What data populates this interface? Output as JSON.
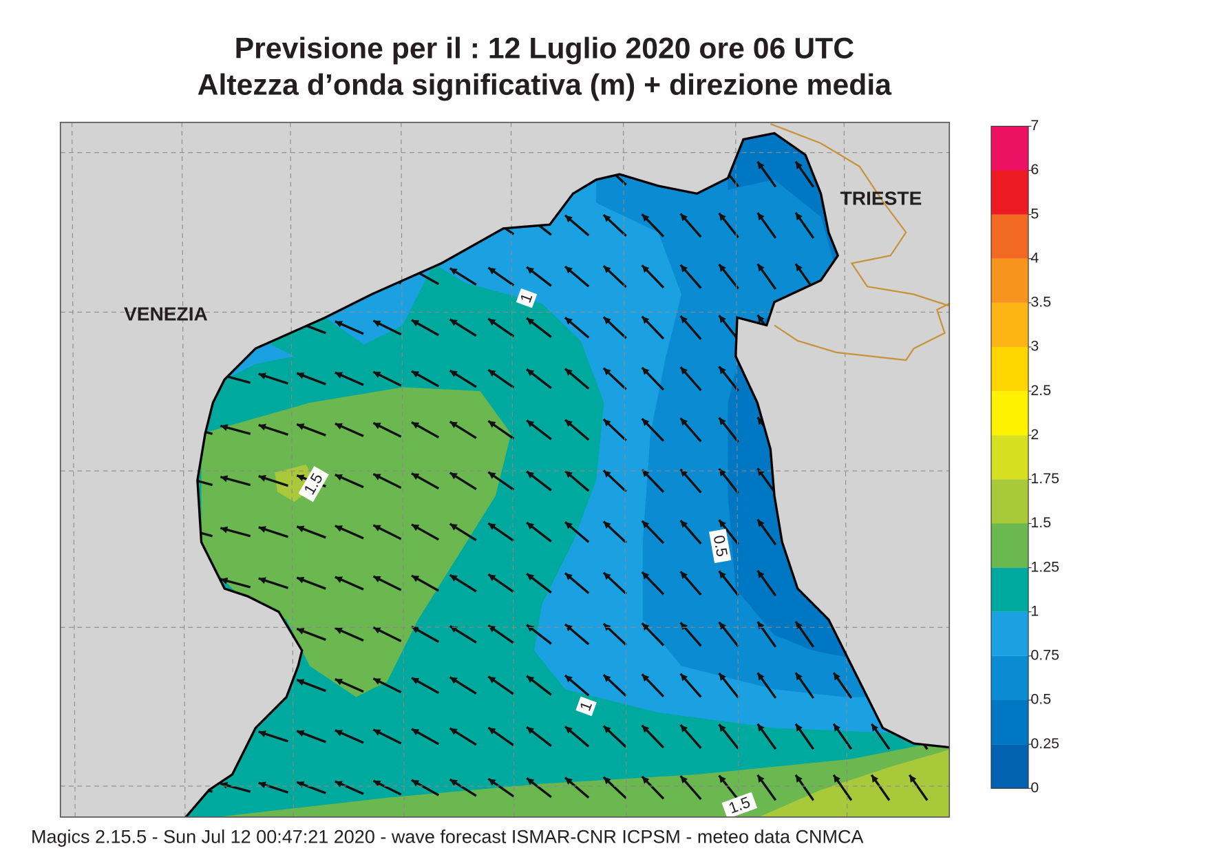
{
  "title": [
    "Previsione per il  :  12  Luglio   2020   ore 06 UTC",
    "Altezza d’onda significativa (m) + direzione media"
  ],
  "places": [
    "VENEZIA",
    "TRIESTE"
  ],
  "contour_labels": [
    "1",
    "1.5",
    "0.5",
    "1",
    "1.5"
  ],
  "legend": {
    "ticks": [
      0,
      0.25,
      0.5,
      0.75,
      1,
      1.25,
      1.5,
      1.75,
      2,
      2.5,
      3,
      3.5,
      4,
      5,
      6,
      7
    ],
    "colors": [
      "#0062b0",
      "#0077c2",
      "#0a8bd2",
      "#1ba1e2",
      "#00a99d",
      "#6ab84f",
      "#a8c93a",
      "#d6e021",
      "#fff200",
      "#ffd500",
      "#fdb515",
      "#f7941d",
      "#f26a22",
      "#ed1c24",
      "#ec1162"
    ]
  },
  "footer": "Magics 2.15.5 - Sun Jul 12 00:47:21 2020 - wave forecast  ISMAR-CNR  ICPSM - meteo data   CNMCA"
}
